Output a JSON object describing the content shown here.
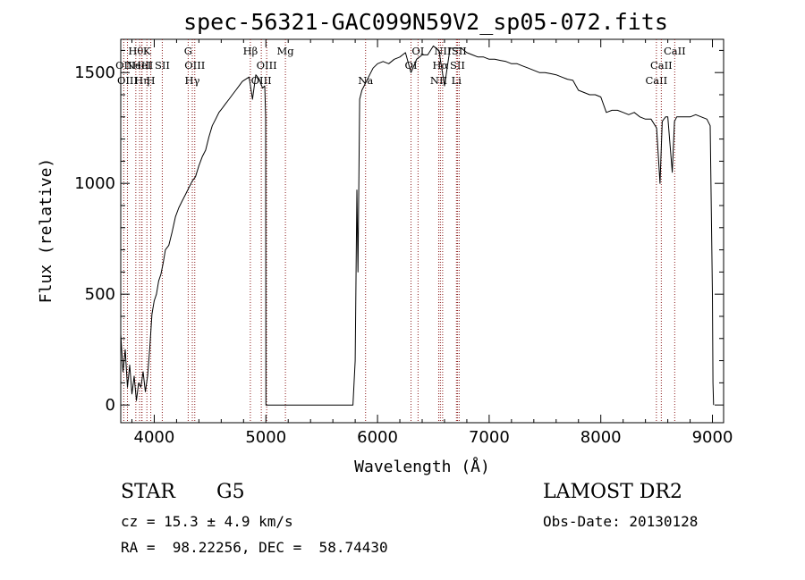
{
  "info": {
    "object_class": "STAR",
    "subclass": "G5",
    "survey": "LAMOST DR2",
    "redshift": "cz = 15.3 ± 4.9 km/s",
    "obs_date": "Obs-Date: 20130128",
    "coords": "RA =  98.22256, DEC =  58.74430"
  },
  "chart_data": {
    "type": "line",
    "title": "spec-56321-GAC099N59V2_sp05-072.fits",
    "xlabel": "Wavelength (Å)",
    "ylabel": "Flux (relative)",
    "xlim": [
      3700,
      9100
    ],
    "ylim": [
      -80,
      1650
    ],
    "x_ticks": [
      4000,
      5000,
      6000,
      7000,
      8000,
      9000
    ],
    "x_tick_labels": [
      "4000",
      "5000",
      "6000",
      "7000",
      "8000",
      "9000"
    ],
    "y_ticks": [
      0,
      500,
      1000,
      1500
    ],
    "y_tick_labels": [
      "0",
      "500",
      "1000",
      "1500"
    ],
    "grid": false,
    "line_color": "#000000",
    "marker_color": "#8b1a1a",
    "series": [
      {
        "x": [
          3700,
          3720,
          3740,
          3760,
          3780,
          3800,
          3820,
          3840,
          3860,
          3880,
          3900,
          3920,
          3940,
          3960,
          3980,
          4000,
          4020,
          4040,
          4060,
          4080,
          4100,
          4130,
          4160,
          4190,
          4220,
          4250,
          4280,
          4310,
          4340,
          4370,
          4400,
          4430,
          4460,
          4490,
          4520,
          4550,
          4580,
          4610,
          4640,
          4670,
          4700,
          4730,
          4760,
          4790,
          4820,
          4850,
          4880,
          4910,
          4940,
          4970,
          4990,
          4998,
          5000,
          5005,
          5010,
          5100,
          5200,
          5300,
          5400,
          5500,
          5600,
          5700,
          5780,
          5800,
          5815,
          5825,
          5840,
          5860,
          5880,
          5900,
          5930,
          5960,
          6000,
          6050,
          6100,
          6150,
          6200,
          6250,
          6300,
          6350,
          6400,
          6450,
          6500,
          6550,
          6600,
          6650,
          6700,
          6750,
          6800,
          6850,
          6900,
          6950,
          7000,
          7050,
          7100,
          7150,
          7200,
          7250,
          7300,
          7350,
          7400,
          7450,
          7500,
          7550,
          7600,
          7650,
          7700,
          7750,
          7800,
          7850,
          7900,
          7950,
          8000,
          8050,
          8100,
          8150,
          8200,
          8250,
          8300,
          8350,
          8400,
          8450,
          8500,
          8530,
          8550,
          8580,
          8600,
          8640,
          8660,
          8680,
          8700,
          8750,
          8800,
          8850,
          8900,
          8950,
          8980,
          9000,
          9005,
          9010
        ],
        "y": [
          320,
          150,
          250,
          80,
          180,
          50,
          130,
          20,
          100,
          80,
          150,
          60,
          130,
          260,
          410,
          470,
          500,
          560,
          590,
          640,
          700,
          720,
          780,
          850,
          890,
          920,
          950,
          980,
          1010,
          1030,
          1080,
          1120,
          1150,
          1210,
          1260,
          1290,
          1320,
          1340,
          1360,
          1380,
          1400,
          1420,
          1440,
          1460,
          1470,
          1480,
          1380,
          1490,
          1470,
          1430,
          1440,
          1300,
          0,
          0,
          0,
          0,
          0,
          0,
          0,
          0,
          0,
          0,
          0,
          200,
          970,
          600,
          1380,
          1420,
          1440,
          1460,
          1490,
          1520,
          1540,
          1550,
          1540,
          1560,
          1570,
          1590,
          1500,
          1560,
          1580,
          1580,
          1620,
          1600,
          1440,
          1610,
          1610,
          1610,
          1590,
          1580,
          1570,
          1570,
          1560,
          1560,
          1555,
          1550,
          1540,
          1540,
          1530,
          1520,
          1510,
          1500,
          1500,
          1495,
          1490,
          1480,
          1470,
          1465,
          1420,
          1410,
          1400,
          1400,
          1390,
          1320,
          1330,
          1330,
          1320,
          1310,
          1320,
          1300,
          1290,
          1290,
          1250,
          1000,
          1280,
          1300,
          1300,
          1050,
          1280,
          1300,
          1300,
          1300,
          1300,
          1310,
          1300,
          1290,
          1260,
          500,
          100,
          0
        ]
      }
    ],
    "line_markers": [
      {
        "wavelength": 3835,
        "row": 1,
        "label": "Hθ"
      },
      {
        "wavelength": 3727,
        "row": 2,
        "label": "OII"
      },
      {
        "wavelength": 3869,
        "row": 2,
        "label": "NeIII"
      },
      {
        "wavelength": 3934,
        "row": 1,
        "label": "K"
      },
      {
        "wavelength": 3969,
        "row": 3,
        "label": "H"
      },
      {
        "wavelength": 4072,
        "row": 2,
        "label": "SII"
      },
      {
        "wavelength": 3760,
        "row": 3,
        "label": "OIII"
      },
      {
        "wavelength": 3889,
        "row": 2,
        "label": "HeI"
      },
      {
        "wavelength": 3890,
        "row": 3,
        "label": "Hη"
      },
      {
        "wavelength": 4304,
        "row": 1,
        "label": "G"
      },
      {
        "wavelength": 4341,
        "row": 3,
        "label": "Hγ"
      },
      {
        "wavelength": 4363,
        "row": 2,
        "label": "OIII"
      },
      {
        "wavelength": 4861,
        "row": 1,
        "label": "Hβ"
      },
      {
        "wavelength": 4959,
        "row": 3,
        "label": "OIII"
      },
      {
        "wavelength": 5007,
        "row": 2,
        "label": "OIII"
      },
      {
        "wavelength": 5175,
        "row": 1,
        "label": "Mg"
      },
      {
        "wavelength": 5893,
        "row": 3,
        "label": "Na"
      },
      {
        "wavelength": 6300,
        "row": 2,
        "label": "OI"
      },
      {
        "wavelength": 6363,
        "row": 1,
        "label": "OI"
      },
      {
        "wavelength": 6548,
        "row": 3,
        "label": "NII"
      },
      {
        "wavelength": 6563,
        "row": 2,
        "label": "Hα"
      },
      {
        "wavelength": 6583,
        "row": 1,
        "label": "NII"
      },
      {
        "wavelength": 6707,
        "row": 3,
        "label": "Li"
      },
      {
        "wavelength": 6716,
        "row": 2,
        "label": "SII"
      },
      {
        "wavelength": 6731,
        "row": 1,
        "label": "SII"
      },
      {
        "wavelength": 8498,
        "row": 3,
        "label": "CaII"
      },
      {
        "wavelength": 8542,
        "row": 2,
        "label": "CaII"
      },
      {
        "wavelength": 8662,
        "row": 1,
        "label": "CaII"
      }
    ]
  }
}
